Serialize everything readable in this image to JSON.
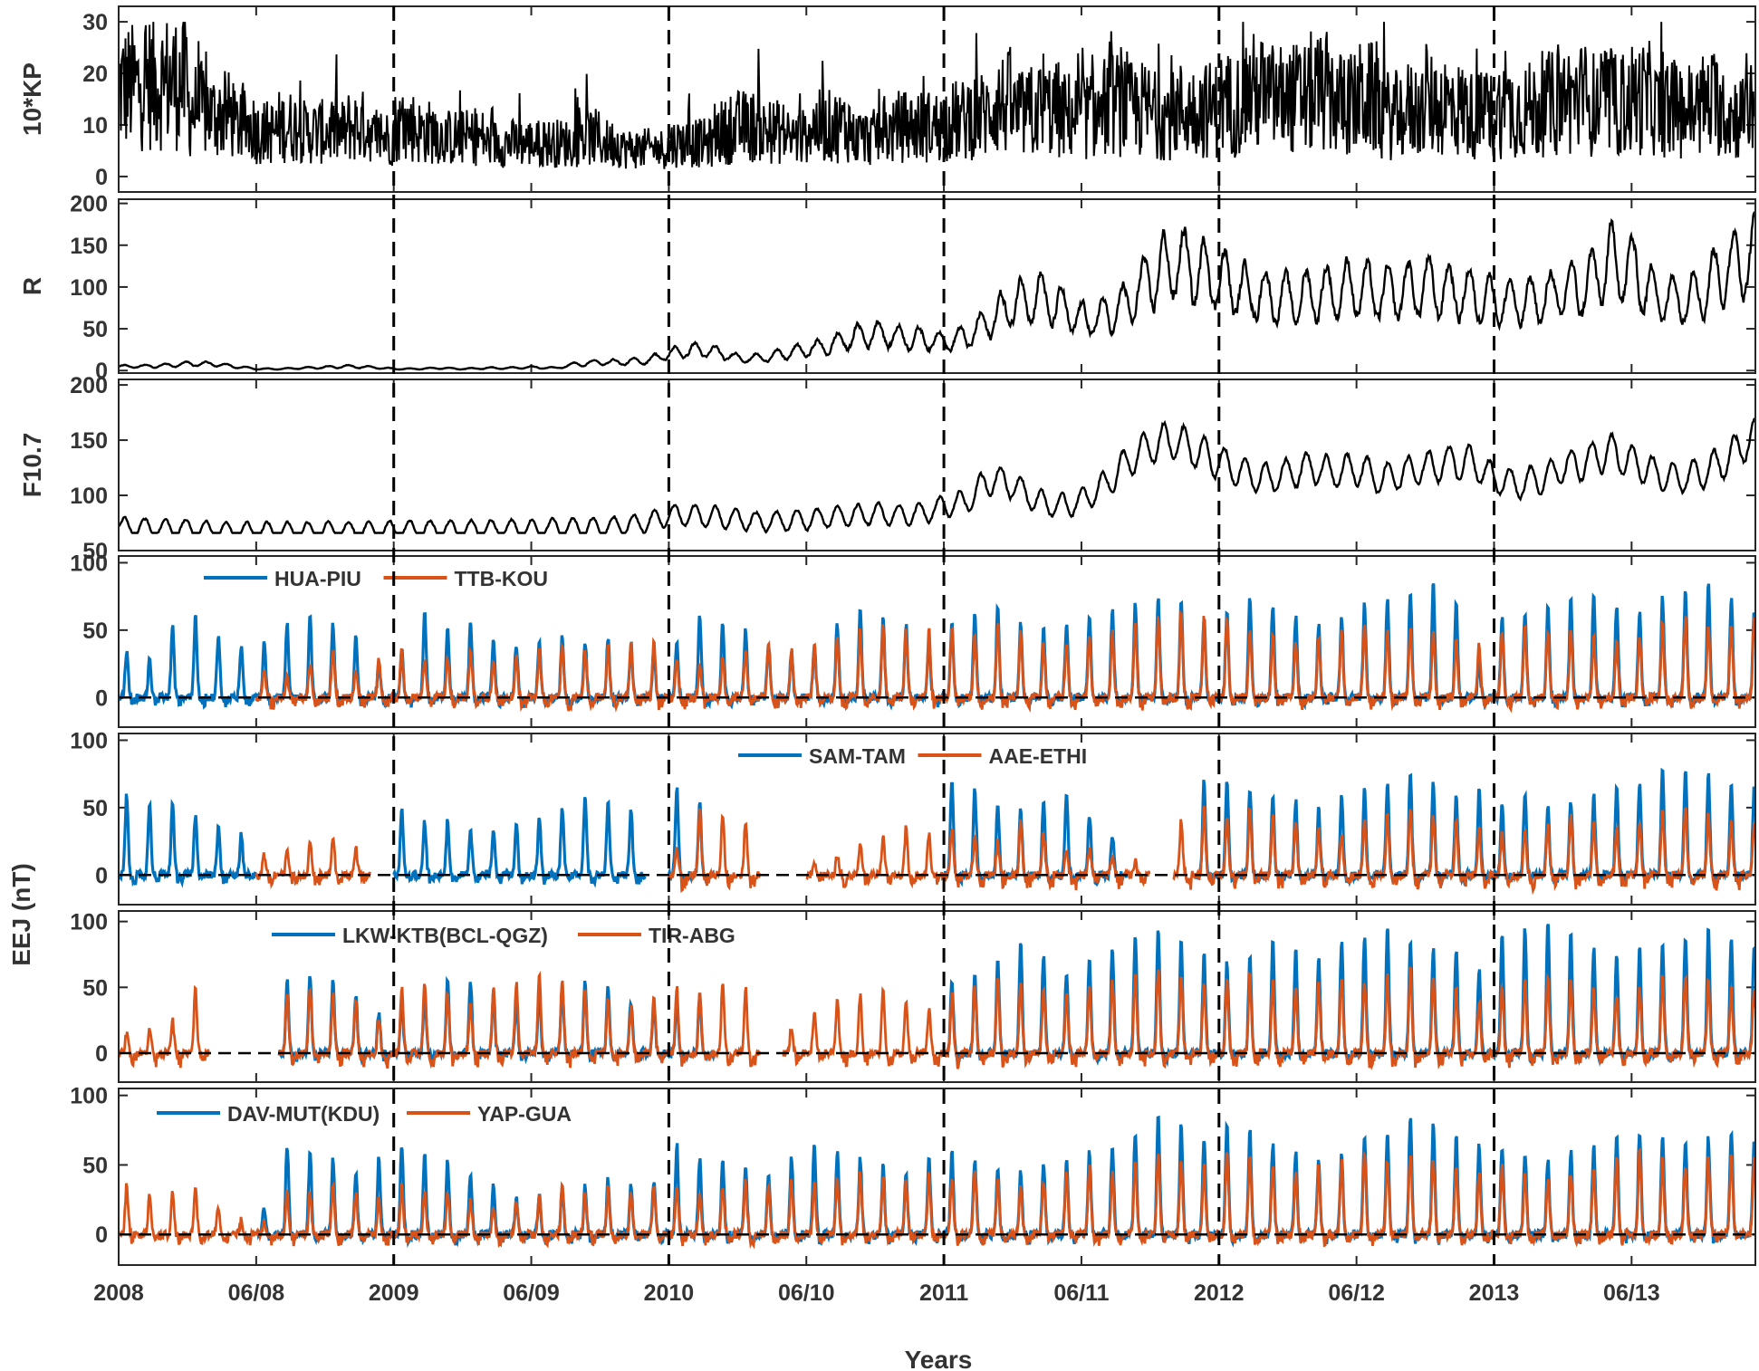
{
  "figure": {
    "xlabel": "Years",
    "shared_ylabel": "EEJ (nT)",
    "year_boundaries": [
      "2009",
      "2010",
      "2011",
      "2012",
      "2013"
    ],
    "colors": {
      "series_blue": "#0072BD",
      "series_orange": "#D95319",
      "black": "#000000",
      "text": "#333333"
    },
    "x_ticks": [
      "2008",
      "06/08",
      "2009",
      "06/09",
      "2010",
      "06/10",
      "2011",
      "06/11",
      "2012",
      "06/12",
      "2013",
      "06/13"
    ]
  },
  "chart_data": [
    {
      "type": "line",
      "ylabel": "10*KP",
      "ylim": [
        -3,
        33
      ],
      "yticks": [
        "0",
        "10",
        "20",
        "30"
      ],
      "yticks_values": [
        0,
        10,
        20,
        30
      ],
      "xlim": [
        2008.0,
        2013.95
      ],
      "series": [
        {
          "color": "#000000",
          "monthly_mean": [
            16,
            17,
            17,
            12,
            11,
            9,
            8,
            9,
            8,
            8,
            9,
            7,
            9,
            8,
            7,
            7,
            6,
            6,
            6,
            6,
            7,
            6,
            5,
            5,
            6,
            6,
            8,
            9,
            8,
            7,
            9,
            9,
            7,
            8,
            9,
            9,
            10,
            11,
            13,
            11,
            12,
            11,
            11,
            13,
            12,
            11,
            12,
            12,
            13,
            15,
            14,
            14,
            15,
            13,
            14,
            11,
            12,
            13,
            12,
            11,
            12,
            12,
            13,
            14,
            13,
            13,
            14,
            12,
            12,
            13,
            11,
            13
          ],
          "range": [
            0,
            30
          ]
        }
      ]
    },
    {
      "type": "line",
      "ylabel": "R",
      "ylim": [
        -3,
        205
      ],
      "yticks": [
        "0",
        "50",
        "100",
        "150",
        "200"
      ],
      "yticks_values": [
        0,
        50,
        100,
        150,
        200
      ],
      "xlim": [
        2008.0,
        2013.95
      ],
      "series": [
        {
          "color": "#000000",
          "monthly_mean": [
            5,
            5,
            6,
            8,
            8,
            5,
            2,
            2,
            3,
            4,
            5,
            4,
            2,
            2,
            3,
            2,
            3,
            3,
            4,
            3,
            8,
            10,
            10,
            12,
            20,
            25,
            22,
            15,
            15,
            20,
            25,
            30,
            40,
            45,
            40,
            38,
            35,
            40,
            60,
            80,
            90,
            75,
            60,
            65,
            80,
            110,
            130,
            120,
            110,
            95,
            90,
            85,
            90,
            95,
            100,
            90,
            95,
            100,
            95,
            90,
            85,
            80,
            85,
            95,
            100,
            130,
            120,
            90,
            85,
            95,
            120,
            135
          ]
        }
      ]
    },
    {
      "type": "line",
      "ylabel": "F10.7",
      "ylim": [
        50,
        205
      ],
      "yticks": [
        "50",
        "100",
        "150",
        "200"
      ],
      "yticks_values": [
        50,
        100,
        150,
        200
      ],
      "xlim": [
        2008.0,
        2013.95
      ],
      "series": [
        {
          "color": "#000000",
          "monthly_mean": [
            72,
            71,
            70,
            70,
            69,
            68,
            68,
            68,
            68,
            68,
            68,
            68,
            69,
            69,
            69,
            69,
            70,
            70,
            70,
            71,
            71,
            71,
            73,
            75,
            82,
            82,
            80,
            78,
            76,
            77,
            78,
            80,
            82,
            83,
            82,
            83,
            90,
            95,
            115,
            110,
            95,
            90,
            95,
            110,
            130,
            145,
            150,
            140,
            130,
            120,
            115,
            120,
            125,
            120,
            125,
            115,
            120,
            125,
            130,
            130,
            115,
            110,
            115,
            125,
            130,
            140,
            130,
            120,
            115,
            120,
            130,
            150
          ]
        }
      ]
    },
    {
      "type": "line",
      "ylim": [
        -22,
        105
      ],
      "yticks": [
        "0",
        "50",
        "100"
      ],
      "yticks_values": [
        0,
        50,
        100
      ],
      "xlim": [
        2008.0,
        2013.95
      ],
      "series": [
        {
          "name": "HUA-PIU",
          "color": "#0072BD",
          "monthly_peak": [
            35,
            30,
            55,
            60,
            45,
            40,
            40,
            55,
            60,
            55,
            45,
            25,
            35,
            65,
            50,
            55,
            45,
            40,
            40,
            45,
            42,
            45,
            40,
            35,
            40,
            60,
            55,
            50,
            40,
            35,
            40,
            55,
            65,
            60,
            55,
            40,
            55,
            65,
            70,
            55,
            50,
            55,
            60,
            65,
            70,
            75,
            70,
            60,
            65,
            75,
            70,
            60,
            55,
            60,
            70,
            75,
            80,
            85,
            70,
            25,
            60,
            65,
            70,
            75,
            80,
            70,
            65,
            75,
            80,
            85,
            75,
            65
          ]
        },
        {
          "name": "TTB-KOU",
          "color": "#D95319",
          "monthly_peak": [
            null,
            null,
            null,
            null,
            null,
            null,
            20,
            15,
            25,
            35,
            20,
            30,
            35,
            30,
            30,
            35,
            25,
            30,
            35,
            40,
            35,
            40,
            40,
            45,
            30,
            25,
            30,
            35,
            40,
            35,
            40,
            45,
            50,
            55,
            50,
            50,
            50,
            45,
            55,
            50,
            40,
            40,
            45,
            50,
            55,
            60,
            65,
            60,
            60,
            50,
            45,
            40,
            45,
            50,
            55,
            50,
            55,
            50,
            45,
            40,
            50,
            55,
            50,
            50,
            45,
            40,
            45,
            55,
            60,
            55,
            55,
            60
          ],
          "trough": -12
        }
      ]
    },
    {
      "type": "line",
      "ylim": [
        -22,
        105
      ],
      "yticks": [
        "0",
        "50",
        "100"
      ],
      "yticks_values": [
        0,
        50,
        100
      ],
      "xlim": [
        2008.0,
        2013.95
      ],
      "series": [
        {
          "name": "SAM-TAM",
          "color": "#0072BD",
          "monthly_peak": [
            60,
            55,
            55,
            45,
            35,
            30,
            null,
            null,
            null,
            null,
            null,
            null,
            50,
            40,
            40,
            35,
            35,
            40,
            45,
            50,
            60,
            55,
            50,
            null,
            65,
            55,
            null,
            null,
            null,
            null,
            null,
            null,
            null,
            null,
            null,
            null,
            70,
            65,
            55,
            50,
            55,
            60,
            45,
            30,
            null,
            null,
            null,
            70,
            70,
            65,
            60,
            55,
            50,
            60,
            65,
            70,
            75,
            70,
            60,
            65,
            55,
            60,
            50,
            55,
            60,
            65,
            70,
            80,
            80,
            75,
            70,
            65
          ]
        },
        {
          "name": "AAE-ETHI",
          "color": "#D95319",
          "monthly_peak": [
            null,
            null,
            null,
            null,
            null,
            null,
            15,
            20,
            25,
            30,
            20,
            null,
            null,
            null,
            null,
            null,
            null,
            null,
            null,
            null,
            null,
            null,
            null,
            null,
            20,
            50,
            45,
            40,
            null,
            null,
            10,
            15,
            25,
            30,
            35,
            30,
            35,
            30,
            25,
            40,
            30,
            20,
            20,
            15,
            10,
            null,
            40,
            50,
            45,
            50,
            45,
            40,
            35,
            30,
            40,
            45,
            50,
            45,
            40,
            35,
            30,
            35,
            40,
            45,
            40,
            35,
            40,
            50,
            50,
            45,
            40,
            40
          ],
          "trough": -15
        }
      ]
    },
    {
      "type": "line",
      "ylim": [
        -22,
        108
      ],
      "yticks": [
        "0",
        "50",
        "100"
      ],
      "yticks_values": [
        0,
        50,
        100
      ],
      "xlim": [
        2008.0,
        2013.95
      ],
      "series": [
        {
          "name": "LKW-KTB(BCL-QGZ)",
          "color": "#0072BD",
          "monthly_peak": [
            null,
            null,
            null,
            null,
            null,
            null,
            null,
            55,
            60,
            55,
            45,
            30,
            40,
            45,
            55,
            55,
            45,
            40,
            45,
            50,
            55,
            50,
            40,
            35,
            40,
            45,
            null,
            null,
            null,
            null,
            null,
            null,
            null,
            null,
            null,
            null,
            55,
            60,
            70,
            85,
            75,
            60,
            70,
            80,
            90,
            95,
            85,
            75,
            70,
            75,
            85,
            80,
            75,
            85,
            90,
            95,
            85,
            80,
            80,
            65,
            90,
            95,
            100,
            90,
            80,
            75,
            80,
            85,
            90,
            95,
            90,
            85
          ]
        },
        {
          "name": "TIR-ABG",
          "color": "#D95319",
          "monthly_peak": [
            15,
            20,
            25,
            50,
            null,
            null,
            null,
            45,
            50,
            45,
            40,
            25,
            50,
            55,
            45,
            40,
            50,
            55,
            60,
            55,
            50,
            40,
            35,
            45,
            50,
            45,
            55,
            50,
            null,
            20,
            30,
            40,
            45,
            50,
            40,
            35,
            45,
            50,
            60,
            55,
            50,
            45,
            50,
            55,
            60,
            65,
            60,
            55,
            55,
            60,
            55,
            50,
            55,
            60,
            55,
            60,
            65,
            60,
            50,
            40,
            50,
            55,
            60,
            55,
            50,
            45,
            50,
            60,
            60,
            55,
            50,
            50
          ],
          "trough": -15
        }
      ]
    },
    {
      "type": "line",
      "ylim": [
        -22,
        105
      ],
      "yticks": [
        "0",
        "50",
        "100"
      ],
      "yticks_values": [
        0,
        50,
        100
      ],
      "xlim": [
        2008.0,
        2013.95
      ],
      "series": [
        {
          "name": "DAV-MUT(KDU)",
          "color": "#0072BD",
          "monthly_peak": [
            null,
            null,
            null,
            null,
            null,
            null,
            20,
            65,
            60,
            55,
            45,
            55,
            65,
            60,
            55,
            45,
            35,
            25,
            30,
            35,
            35,
            40,
            35,
            40,
            65,
            55,
            55,
            50,
            45,
            55,
            65,
            60,
            55,
            50,
            45,
            55,
            60,
            55,
            50,
            45,
            50,
            55,
            60,
            65,
            75,
            85,
            80,
            70,
            80,
            75,
            65,
            60,
            55,
            60,
            70,
            75,
            85,
            80,
            70,
            65,
            65,
            60,
            55,
            60,
            65,
            70,
            75,
            70,
            65,
            70,
            75,
            70
          ]
        },
        {
          "name": "YAP-GUA",
          "color": "#D95319",
          "monthly_peak": [
            35,
            30,
            30,
            35,
            20,
            10,
            10,
            30,
            30,
            35,
            30,
            25,
            35,
            30,
            30,
            25,
            20,
            25,
            30,
            35,
            30,
            35,
            30,
            35,
            35,
            30,
            35,
            40,
            35,
            40,
            35,
            40,
            45,
            40,
            40,
            45,
            40,
            45,
            40,
            35,
            40,
            45,
            50,
            45,
            55,
            60,
            55,
            50,
            60,
            55,
            50,
            45,
            50,
            55,
            60,
            55,
            60,
            55,
            50,
            45,
            50,
            45,
            40,
            45,
            50,
            55,
            60,
            55,
            50,
            55,
            60,
            55
          ],
          "trough": -10
        }
      ]
    }
  ]
}
